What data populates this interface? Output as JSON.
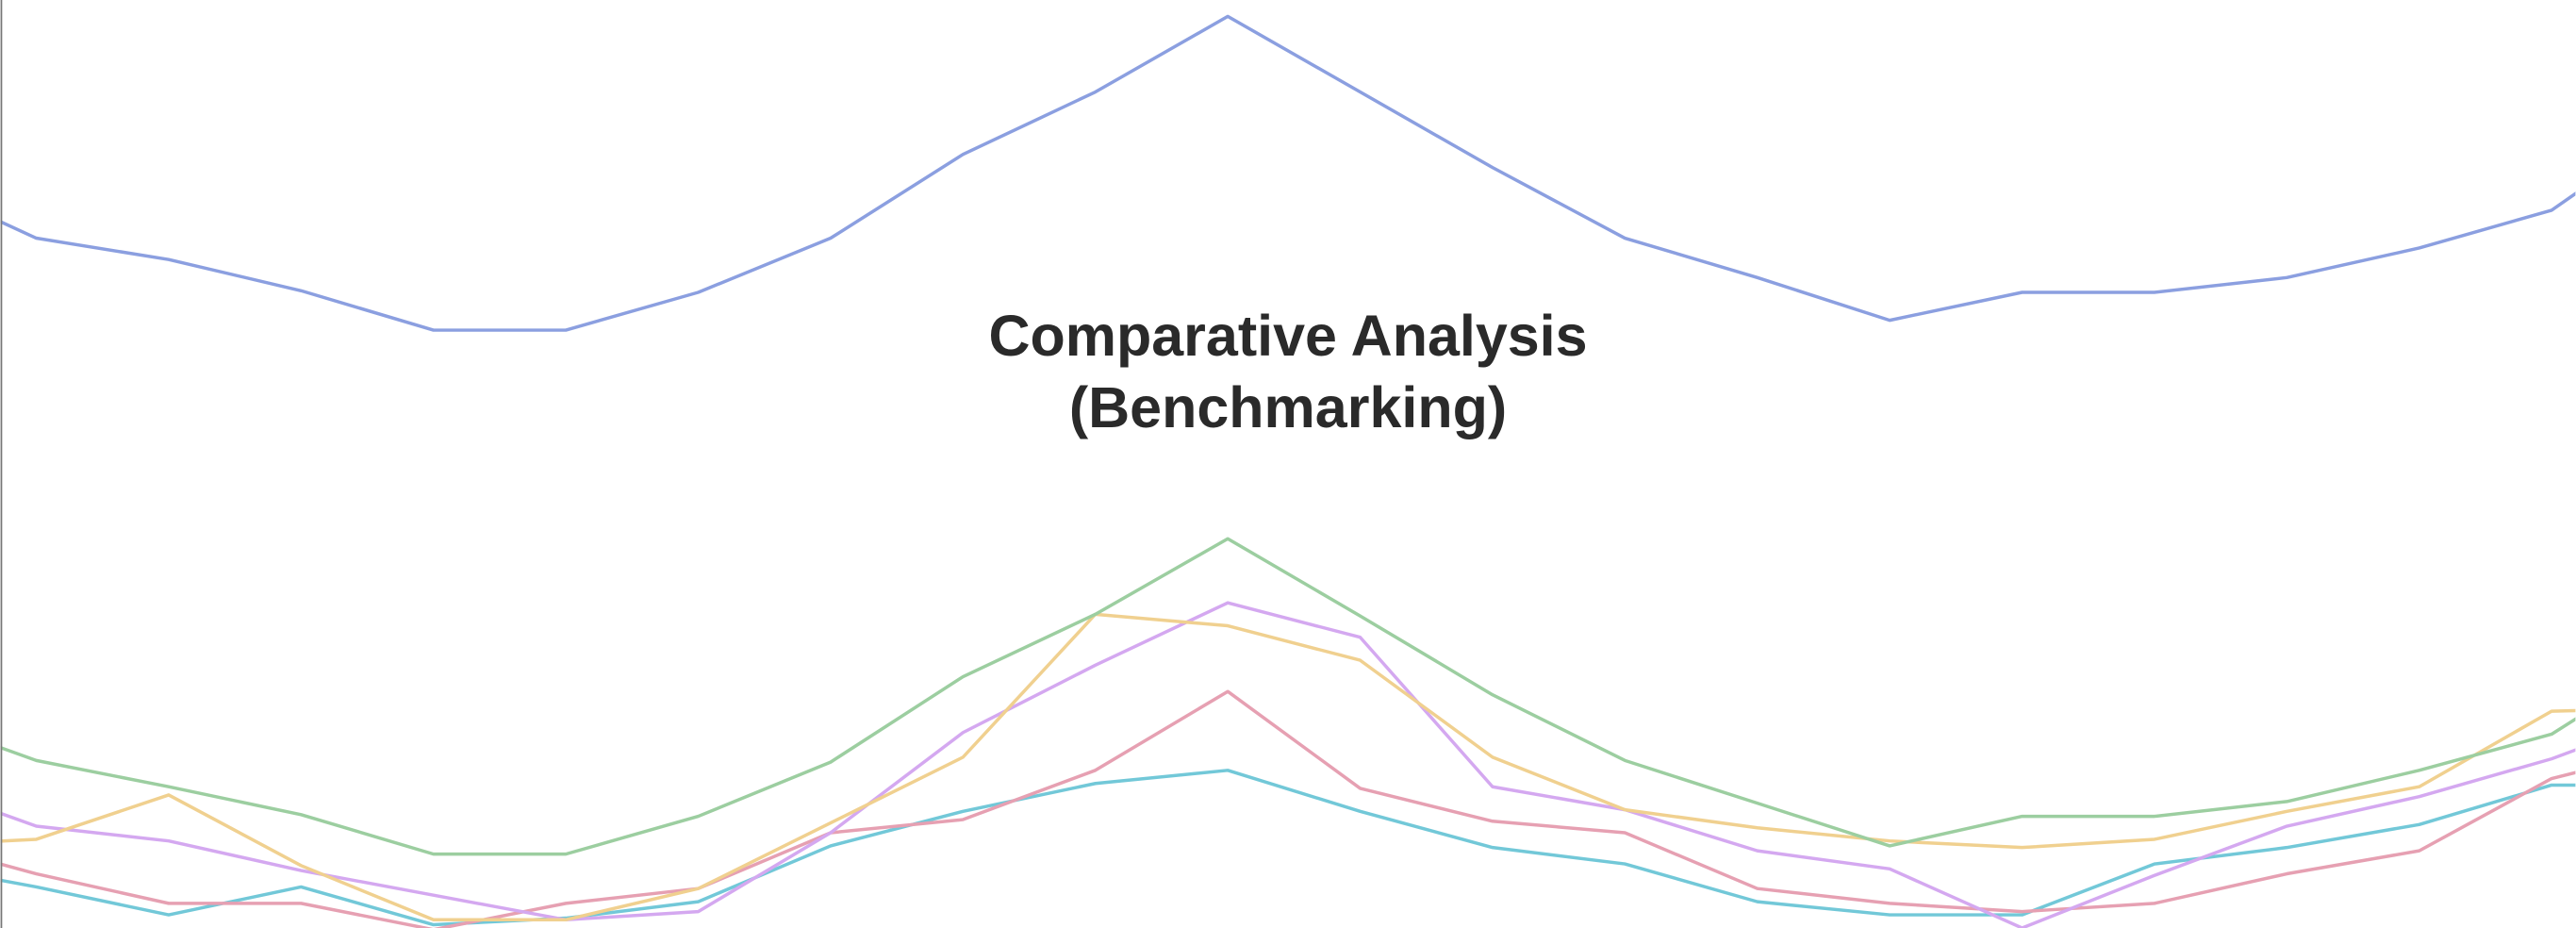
{
  "chart_data": {
    "type": "line",
    "title": "Comparative Analysis (Benchmarking)",
    "x": [
      0,
      1,
      2,
      3,
      4,
      5,
      6,
      7,
      8,
      9,
      10,
      11,
      12,
      13,
      14,
      15,
      16,
      17,
      18,
      19,
      20,
      21
    ],
    "xlim": [
      0.73,
      20.18
    ],
    "ylim": [
      0,
      565
    ],
    "series": [
      {
        "color": "#72c8d8",
        "values": [
          40,
          25,
          8,
          25,
          2,
          6,
          16,
          50,
          71,
          88,
          96,
          71,
          49,
          39,
          16,
          8,
          8,
          39,
          49,
          63,
          87,
          87
        ]
      },
      {
        "color": "#e6a0b2",
        "values": [
          55,
          33,
          15,
          15,
          -1,
          15,
          24,
          58,
          66,
          96,
          144,
          85,
          65,
          58,
          24,
          15,
          10,
          15,
          33,
          47,
          91,
          111
        ]
      },
      {
        "color": "#d4a8f0",
        "values": [
          91,
          62,
          53,
          35,
          20,
          5,
          10,
          58,
          119,
          160,
          198,
          177,
          86,
          72,
          47,
          36,
          0,
          32,
          62,
          80,
          103,
          133
        ]
      },
      {
        "color": "#f0d08f",
        "values": [
          50,
          54,
          81,
          38,
          5,
          5,
          24,
          64,
          104,
          191,
          184,
          163,
          104,
          72,
          61,
          53,
          49,
          54,
          71,
          86,
          132,
          134
        ]
      },
      {
        "color": "#9ccea0",
        "values": [
          131,
          102,
          86,
          69,
          45,
          45,
          68,
          101,
          153,
          191,
          237,
          190,
          142,
          102,
          76,
          50,
          68,
          68,
          77,
          96,
          118,
          169
        ]
      },
      {
        "color": "#8b9fe0",
        "values": [
          457,
          420,
          407,
          388,
          364,
          364,
          387,
          420,
          471,
          509,
          555,
          509,
          463,
          420,
          396,
          370,
          387,
          387,
          396,
          414,
          437,
          493
        ]
      }
    ]
  }
}
